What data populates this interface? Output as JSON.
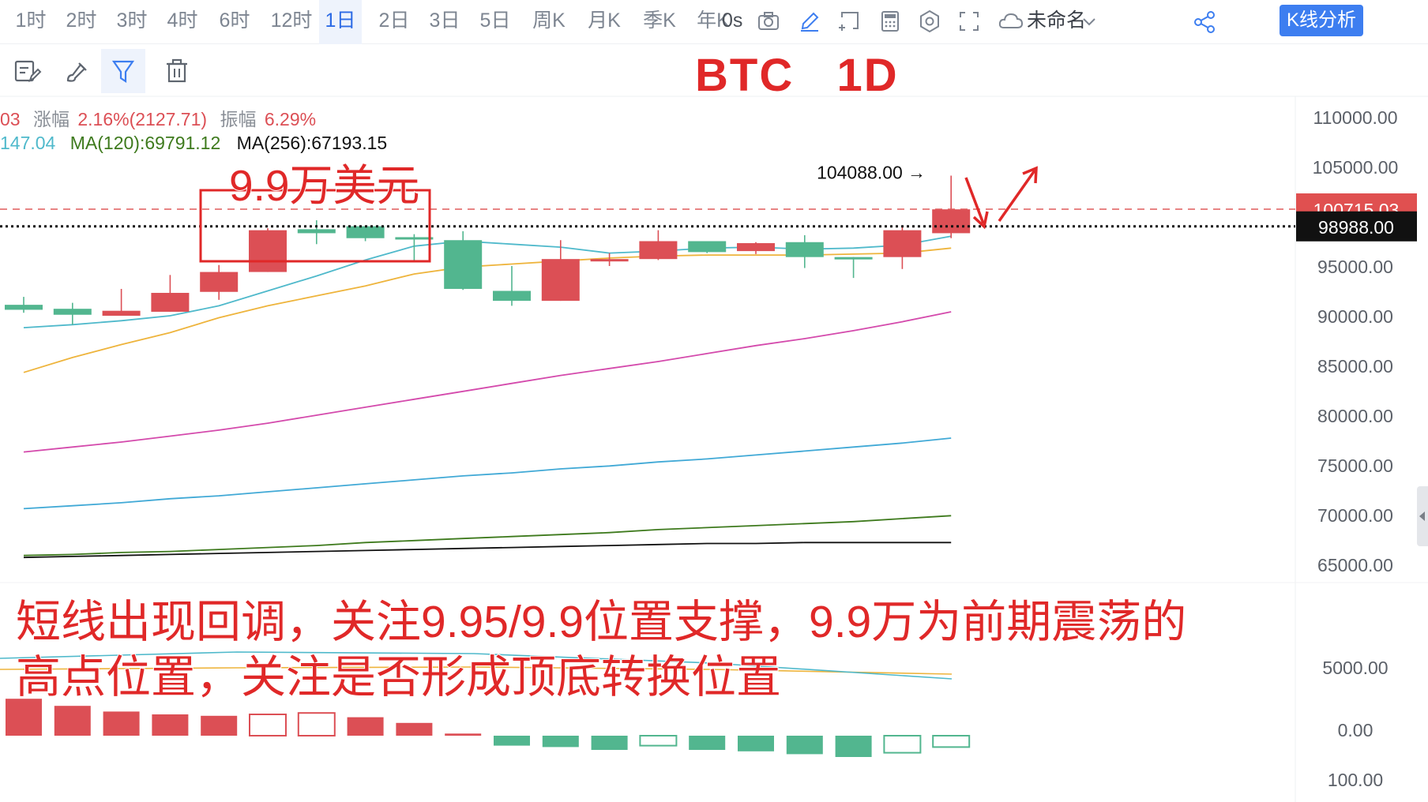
{
  "toolbar": {
    "timeframes": [
      "1时",
      "2时",
      "3时",
      "4时",
      "6时",
      "12时",
      "1日",
      "2日",
      "3日",
      "5日",
      "周K",
      "月K",
      "季K",
      "年K"
    ],
    "active_timeframe": "1日",
    "timer": "0s",
    "workspace_name": "未命名",
    "analysis_button": "K线分析",
    "icons": [
      "camera-icon",
      "pencil-icon",
      "add-panel-icon",
      "calculator-icon",
      "settings-icon",
      "fullscreen-icon",
      "cloud-icon",
      "chevron-down-icon",
      "share-icon"
    ]
  },
  "drawing_tools": [
    "edit-icon",
    "brush-icon",
    "filter-icon",
    "trash-icon"
  ],
  "title": "BTC   1D",
  "info": {
    "line1_prefix": "03",
    "change_label": "涨幅",
    "change_value": "2.16%(2127.71)",
    "amplitude_label": "振幅",
    "amplitude_value": "6.29%",
    "ma_a_value": "147.04",
    "ma120": "MA(120):69791.12",
    "ma256": "MA(256):67193.15"
  },
  "annotations": {
    "box_label": "9.9万美元",
    "high_label": "104088.00",
    "note_line1": "短线出现回调，关注9.95/9.9位置支撑，9.9万为前期震荡的",
    "note_line2": "高点位置，关注是否形成顶底转换位置"
  },
  "colors": {
    "up": "#dc4f55",
    "down": "#52b68f",
    "annotation": "#e02828",
    "ma_short": "#4fb9cb",
    "ma_mid": "#eeb43c",
    "ma_magenta": "#d44aac",
    "ma_blue": "#41a9d6",
    "ma_green": "#3e7a1d",
    "ma_black": "#111111"
  },
  "chart_data": {
    "type": "candlestick",
    "y_ticks": [
      110000,
      105000,
      95000,
      90000,
      85000,
      80000,
      75000,
      70000,
      65000
    ],
    "y_tick_labels": [
      "110000.00",
      "105000.00",
      "95000.00",
      "90000.00",
      "85000.00",
      "80000.00",
      "75000.00",
      "70000.00",
      "65000.00"
    ],
    "price_labels": {
      "upper": "100715.03",
      "upper_value": 100715.03,
      "current": "98988.00",
      "current_value": 98988.0
    },
    "candles": [
      {
        "o": 91100,
        "h": 91900,
        "l": 90300,
        "c": 90600
      },
      {
        "o": 90700,
        "h": 91300,
        "l": 89100,
        "c": 90100
      },
      {
        "o": 90000,
        "h": 92700,
        "l": 90000,
        "c": 90500
      },
      {
        "o": 90400,
        "h": 94100,
        "l": 90400,
        "c": 92300
      },
      {
        "o": 92400,
        "h": 95100,
        "l": 91600,
        "c": 94400
      },
      {
        "o": 94400,
        "h": 98800,
        "l": 94400,
        "c": 98600
      },
      {
        "o": 98700,
        "h": 99600,
        "l": 97200,
        "c": 98300
      },
      {
        "o": 99000,
        "h": 99000,
        "l": 97500,
        "c": 97800
      },
      {
        "o": 97900,
        "h": 98200,
        "l": 95400,
        "c": 97800
      },
      {
        "o": 97600,
        "h": 98500,
        "l": 92600,
        "c": 92700
      },
      {
        "o": 92500,
        "h": 95000,
        "l": 91000,
        "c": 91500
      },
      {
        "o": 91500,
        "h": 97600,
        "l": 91500,
        "c": 95700
      },
      {
        "o": 95600,
        "h": 96300,
        "l": 95000,
        "c": 95700
      },
      {
        "o": 95700,
        "h": 98600,
        "l": 95600,
        "c": 97500
      },
      {
        "o": 97500,
        "h": 97500,
        "l": 96300,
        "c": 96400
      },
      {
        "o": 96500,
        "h": 97400,
        "l": 96200,
        "c": 97300
      },
      {
        "o": 97400,
        "h": 98100,
        "l": 94800,
        "c": 95900
      },
      {
        "o": 95900,
        "h": 95900,
        "l": 93800,
        "c": 95700
      },
      {
        "o": 95900,
        "h": 98900,
        "l": 94700,
        "c": 98600
      },
      {
        "o": 98300,
        "h": 104088,
        "l": 97800,
        "c": 100700
      }
    ],
    "ma_series": [
      {
        "key": "ma_short",
        "values": [
          88800,
          89100,
          89500,
          90000,
          91000,
          92500,
          94000,
          95600,
          97000,
          97500,
          97200,
          96900,
          96300,
          96500,
          96800,
          96900,
          96700,
          96800,
          97100,
          98000
        ]
      },
      {
        "key": "ma_mid",
        "values": [
          84300,
          85800,
          87100,
          88300,
          89800,
          91000,
          92000,
          93000,
          94200,
          94900,
          95200,
          95500,
          95800,
          96000,
          96100,
          96100,
          96100,
          96200,
          96300,
          96800
        ]
      },
      {
        "key": "ma_magenta",
        "values": [
          76300,
          76800,
          77300,
          77900,
          78500,
          79200,
          80000,
          80800,
          81600,
          82400,
          83200,
          84000,
          84700,
          85400,
          86200,
          87000,
          87700,
          88500,
          89400,
          90400
        ]
      },
      {
        "key": "ma_blue",
        "values": [
          70600,
          70900,
          71200,
          71600,
          71900,
          72300,
          72700,
          73100,
          73500,
          73900,
          74200,
          74600,
          74900,
          75300,
          75600,
          76000,
          76400,
          76800,
          77200,
          77700
        ]
      },
      {
        "key": "ma_green",
        "values": [
          65900,
          66000,
          66200,
          66300,
          66500,
          66700,
          66900,
          67200,
          67400,
          67600,
          67800,
          68000,
          68200,
          68500,
          68700,
          68900,
          69100,
          69300,
          69600,
          69900
        ]
      },
      {
        "key": "ma_black",
        "values": [
          65700,
          65800,
          65900,
          66000,
          66100,
          66200,
          66300,
          66400,
          66500,
          66600,
          66700,
          66800,
          66900,
          67000,
          67100,
          67100,
          67200,
          67200,
          67200,
          67200
        ]
      }
    ],
    "sub_panel": {
      "y_tick_labels": [
        "5000.00",
        "0.00",
        "100.00"
      ],
      "histogram": [
        {
          "v": 2.6,
          "style": "up"
        },
        {
          "v": 2.1,
          "style": "up"
        },
        {
          "v": 1.7,
          "style": "up"
        },
        {
          "v": 1.5,
          "style": "up"
        },
        {
          "v": 1.4,
          "style": "up"
        },
        {
          "v": 1.5,
          "style": "up-hollow"
        },
        {
          "v": 1.6,
          "style": "up-hollow"
        },
        {
          "v": 1.3,
          "style": "up"
        },
        {
          "v": 0.9,
          "style": "up"
        },
        {
          "v": 0.15,
          "style": "up"
        },
        {
          "v": -0.7,
          "style": "down"
        },
        {
          "v": -0.8,
          "style": "down"
        },
        {
          "v": -1.0,
          "style": "down"
        },
        {
          "v": -0.7,
          "style": "down-hollow"
        },
        {
          "v": -1.0,
          "style": "down"
        },
        {
          "v": -1.1,
          "style": "down"
        },
        {
          "v": -1.3,
          "style": "down"
        },
        {
          "v": -1.5,
          "style": "down"
        },
        {
          "v": -1.2,
          "style": "down-hollow"
        },
        {
          "v": -0.8,
          "style": "down-hollow"
        }
      ]
    }
  }
}
